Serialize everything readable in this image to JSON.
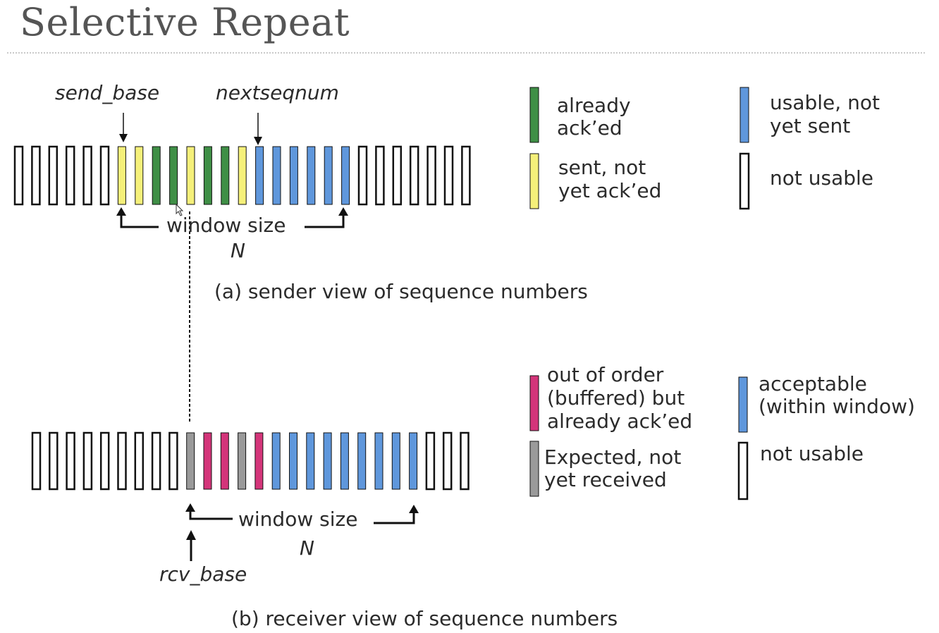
{
  "title": "Selective Repeat",
  "colors": {
    "already_acked": "#3f8f46",
    "sent_not_acked": "#f5f07a",
    "usable_not_sent": "#5f97dc",
    "not_usable": "#ffffff",
    "out_of_order": "#d4357a",
    "expected": "#9a9a9a",
    "acceptable": "#5f97dc",
    "outline": "#111111"
  },
  "sender": {
    "send_base_label": "send_base",
    "nextseqnum_label": "nextseqnum",
    "window_label": "window size",
    "n_label": "N",
    "caption": "(a) sender view of sequence numbers",
    "cells": [
      "not_usable",
      "not_usable",
      "not_usable",
      "not_usable",
      "not_usable",
      "not_usable",
      "sent_not_acked",
      "sent_not_acked",
      "already_acked",
      "already_acked",
      "sent_not_acked",
      "already_acked",
      "already_acked",
      "sent_not_acked",
      "usable_not_sent",
      "usable_not_sent",
      "usable_not_sent",
      "usable_not_sent",
      "usable_not_sent",
      "usable_not_sent",
      "not_usable",
      "not_usable",
      "not_usable",
      "not_usable",
      "not_usable",
      "not_usable",
      "not_usable"
    ]
  },
  "sender_legend": {
    "already_acked": [
      "already",
      "ack’ed"
    ],
    "sent_not_acked": [
      "sent, not",
      "yet ack’ed"
    ],
    "usable_not_sent": [
      "usable, not",
      "yet sent"
    ],
    "not_usable": "not usable"
  },
  "receiver": {
    "rcv_base_label": "rcv_base",
    "window_label": "window size",
    "n_label": "N",
    "caption": "(b) receiver view of sequence numbers",
    "cells": [
      "not_usable",
      "not_usable",
      "not_usable",
      "not_usable",
      "not_usable",
      "not_usable",
      "not_usable",
      "not_usable",
      "not_usable",
      "expected",
      "out_of_order",
      "out_of_order",
      "expected",
      "out_of_order",
      "acceptable",
      "acceptable",
      "acceptable",
      "acceptable",
      "acceptable",
      "acceptable",
      "acceptable",
      "acceptable",
      "acceptable",
      "not_usable",
      "not_usable",
      "not_usable"
    ]
  },
  "receiver_legend": {
    "out_of_order": [
      "out of order",
      "(buffered) but",
      "already ack’ed"
    ],
    "expected": [
      "Expected,  not",
      "yet received"
    ],
    "acceptable": [
      "acceptable",
      "(within window)"
    ],
    "not_usable": "not usable"
  }
}
